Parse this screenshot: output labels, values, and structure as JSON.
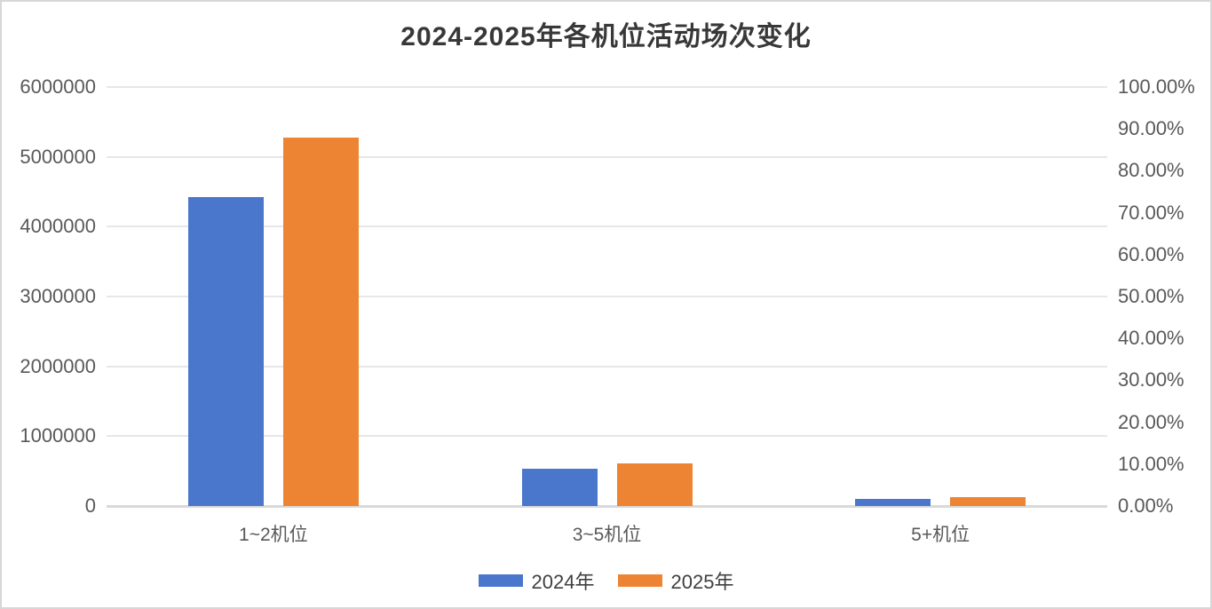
{
  "title": "2024-2025年各机位活动场次变化",
  "chart_data": {
    "type": "bar",
    "title": "2024-2025年各机位活动场次变化",
    "categories": [
      "1~2机位",
      "3~5机位",
      "5+机位"
    ],
    "series": [
      {
        "name": "2024年",
        "color": "#4A77CC",
        "values": [
          4430000,
          540000,
          100000
        ]
      },
      {
        "name": "2025年",
        "color": "#ED8433",
        "values": [
          5280000,
          610000,
          130000
        ]
      }
    ],
    "left_axis": {
      "min": 0,
      "max": 6000000,
      "tick_labels": [
        "0",
        "1000000",
        "2000000",
        "3000000",
        "4000000",
        "5000000",
        "6000000"
      ]
    },
    "right_axis": {
      "min": 0,
      "max": 1,
      "tick_labels": [
        "0.00%",
        "10.00%",
        "20.00%",
        "30.00%",
        "40.00%",
        "50.00%",
        "60.00%",
        "70.00%",
        "80.00%",
        "90.00%",
        "100.00%"
      ]
    },
    "legend_position": "bottom",
    "grid": true,
    "colors": {
      "grid_line": "#E7E7E7",
      "axis_line": "#D9D9D9",
      "tick_text": "#595959",
      "title_text": "#383838",
      "background": "#FFFFFF"
    }
  },
  "legend": {
    "items": [
      {
        "label": "2024年",
        "color": "#4A77CC"
      },
      {
        "label": "2025年",
        "color": "#ED8433"
      }
    ]
  }
}
